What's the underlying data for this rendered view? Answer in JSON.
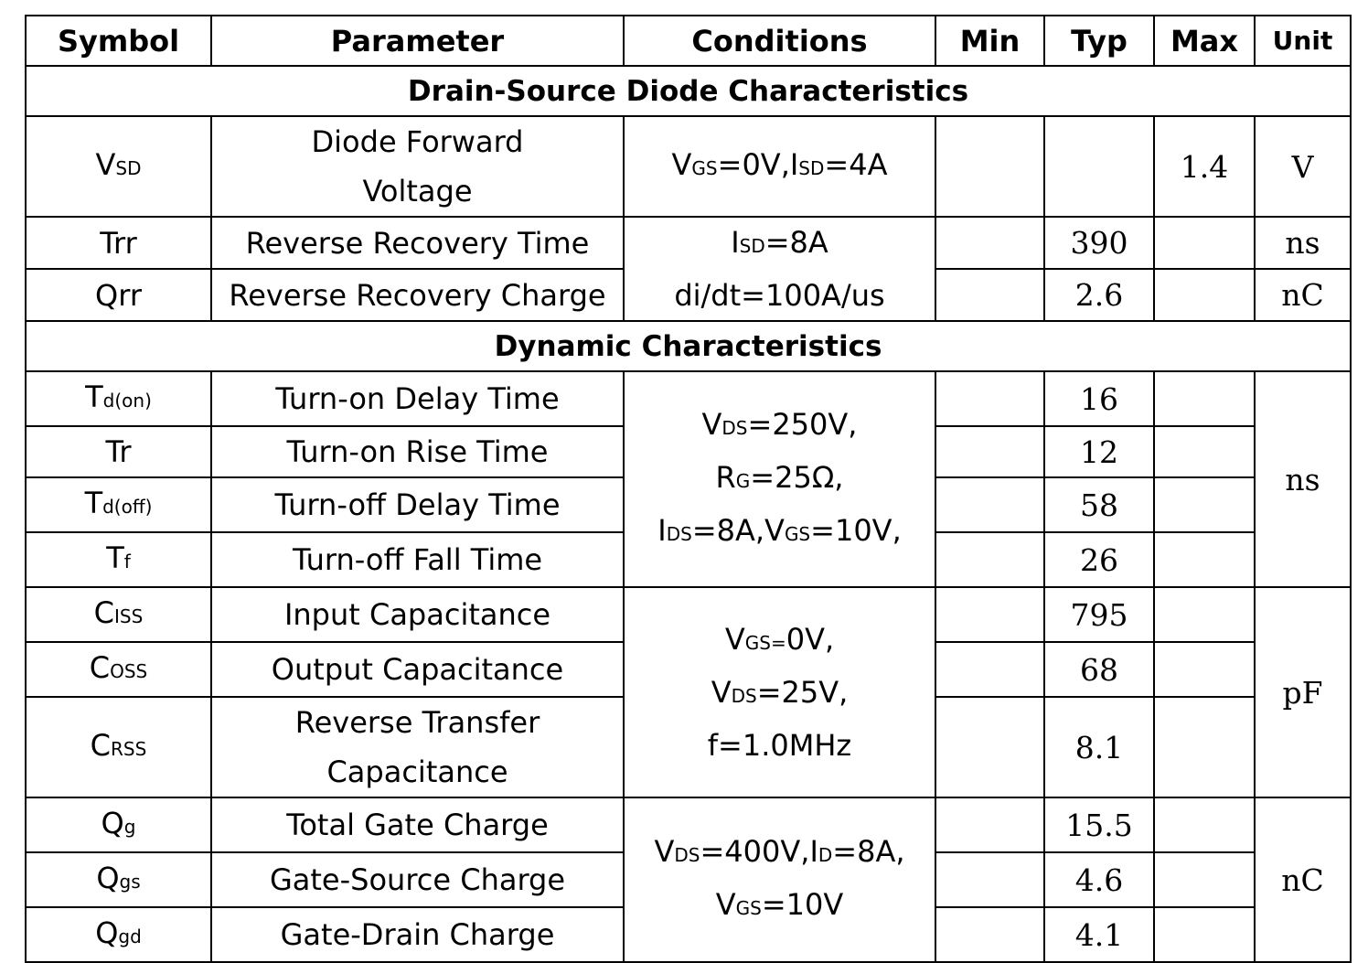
{
  "header": {
    "symbol": "Symbol",
    "parameter": "Parameter",
    "conditions": "Conditions",
    "min": "Min",
    "typ": "Typ",
    "max": "Max",
    "unit": "Unit"
  },
  "sections": {
    "diode": "Drain-Source Diode Characteristics",
    "dynamic": "Dynamic Characteristics"
  },
  "rows": {
    "vsd": {
      "sym_main": "V",
      "sym_sub": "SD",
      "param_line1": "Diode Forward",
      "param_line2": "Voltage",
      "cond_1": "V",
      "cond_1s": "GS",
      "cond_2": "=0V,I",
      "cond_2s": "SD",
      "cond_3": "=4A",
      "max": "1.4",
      "unit": "V"
    },
    "trr": {
      "sym": "Trr",
      "param": "Reverse Recovery Time",
      "cond_l1a": "I",
      "cond_l1s": "SD",
      "cond_l1b": "=8A",
      "cond_l2": "di/dt=100A/us",
      "typ": "390",
      "unit": "ns"
    },
    "qrr": {
      "sym": "Qrr",
      "param": "Reverse Recovery Charge",
      "typ": "2.6",
      "unit": "nC"
    },
    "tdon": {
      "sym_main": "T",
      "sym_sub": "d(on)",
      "param": "Turn-on Delay Time",
      "typ": "16"
    },
    "tr": {
      "sym": "Tr",
      "param": "Turn-on Rise Time",
      "typ": "12"
    },
    "tdoff": {
      "sym_main": "T",
      "sym_sub": "d(off)",
      "param": "Turn-off Delay Time",
      "typ": "58"
    },
    "tf": {
      "sym_main": "T",
      "sym_sub": "f",
      "param": "Turn-off Fall Time",
      "typ": "26"
    },
    "switching_cond": {
      "l1a": "V",
      "l1s": "DS",
      "l1b": "=250V,",
      "l2a": "R",
      "l2s": "G",
      "l2b": "=25Ω,",
      "l3a": "I",
      "l3s": "DS",
      "l3b": "=8A,V",
      "l3s2": "GS",
      "l3c": "=10V,"
    },
    "switching_unit": "ns",
    "ciss": {
      "sym_main": "C",
      "sym_sub": "ISS",
      "param": "Input Capacitance",
      "typ": "795"
    },
    "coss": {
      "sym_main": "C",
      "sym_sub": "OSS",
      "param": "Output Capacitance",
      "typ": "68"
    },
    "crss": {
      "sym_main": "C",
      "sym_sub": "RSS",
      "param_line1": "Reverse Transfer",
      "param_line2": "Capacitance",
      "typ": "8.1"
    },
    "cap_cond": {
      "l1a": "V",
      "l1s": "GS=",
      "l1b": "0V,",
      "l2a": "V",
      "l2s": "DS",
      "l2b": "=25V,",
      "l3": "f=1.0MHz"
    },
    "cap_unit": "pF",
    "qg": {
      "sym_main": "Q",
      "sym_sub": "g",
      "param": "Total Gate Charge",
      "typ": "15.5"
    },
    "qgs": {
      "sym_main": "Q",
      "sym_sub": "gs",
      "param": "Gate-Source Charge",
      "typ": "4.6"
    },
    "qgd": {
      "sym_main": "Q",
      "sym_sub": "gd",
      "param": "Gate-Drain Charge",
      "typ": "4.1"
    },
    "gate_cond": {
      "l1a": "V",
      "l1s": "DS",
      "l1b": "=400V,I",
      "l1s2": "D",
      "l1c": "=8A,",
      "l2a": "V",
      "l2s": "GS",
      "l2b": "=10V"
    },
    "gate_unit": "nC"
  }
}
